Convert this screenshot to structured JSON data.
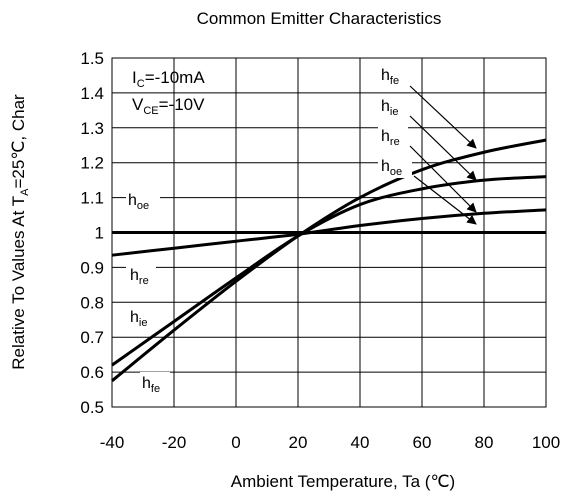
{
  "chart_data": {
    "type": "line",
    "title": "Common Emitter Characteristics",
    "xlabel": "Ambient Temperature, Ta (℃)",
    "ylabel": "Relative To Values At Tₐ=25℃, Char",
    "ylabel_parts": {
      "pre": "Relative To Values At T",
      "sub": "A",
      "post": "=25℃, Char"
    },
    "xlim": [
      -40,
      100
    ],
    "ylim": [
      0.5,
      1.5
    ],
    "xticks": [
      "-40",
      "-20",
      "0",
      "20",
      "40",
      "60",
      "80",
      "100"
    ],
    "yticks": [
      "0.5",
      "0.6",
      "0.7",
      "0.8",
      "0.9",
      "1",
      "1.1",
      "1.2",
      "1.3",
      "1.4",
      "1.5"
    ],
    "conditions": [
      {
        "main": "I",
        "sub": "C",
        "rest": "=-10mA"
      },
      {
        "main": "V",
        "sub": "CE",
        "rest": "=-10V"
      }
    ],
    "series": [
      {
        "name": "h_fe",
        "main": "h",
        "sub": "fe",
        "x": [
          -40,
          -20,
          0,
          20,
          40,
          60,
          80,
          100
        ],
        "y": [
          0.575,
          0.72,
          0.86,
          0.99,
          1.1,
          1.18,
          1.23,
          1.265
        ]
      },
      {
        "name": "h_ie",
        "main": "h",
        "sub": "ie",
        "x": [
          -40,
          -20,
          0,
          20,
          40,
          60,
          80,
          100
        ],
        "y": [
          0.62,
          0.745,
          0.87,
          0.99,
          1.08,
          1.125,
          1.15,
          1.16
        ]
      },
      {
        "name": "h_re",
        "main": "h",
        "sub": "re",
        "x": [
          -40,
          -20,
          0,
          20,
          40,
          60,
          80,
          100
        ],
        "y": [
          0.935,
          0.955,
          0.975,
          0.995,
          1.02,
          1.04,
          1.055,
          1.065
        ]
      },
      {
        "name": "h_oe",
        "main": "h",
        "sub": "oe",
        "x": [
          -40,
          100
        ],
        "y": [
          1.0,
          1.0
        ]
      }
    ],
    "grid": true
  }
}
